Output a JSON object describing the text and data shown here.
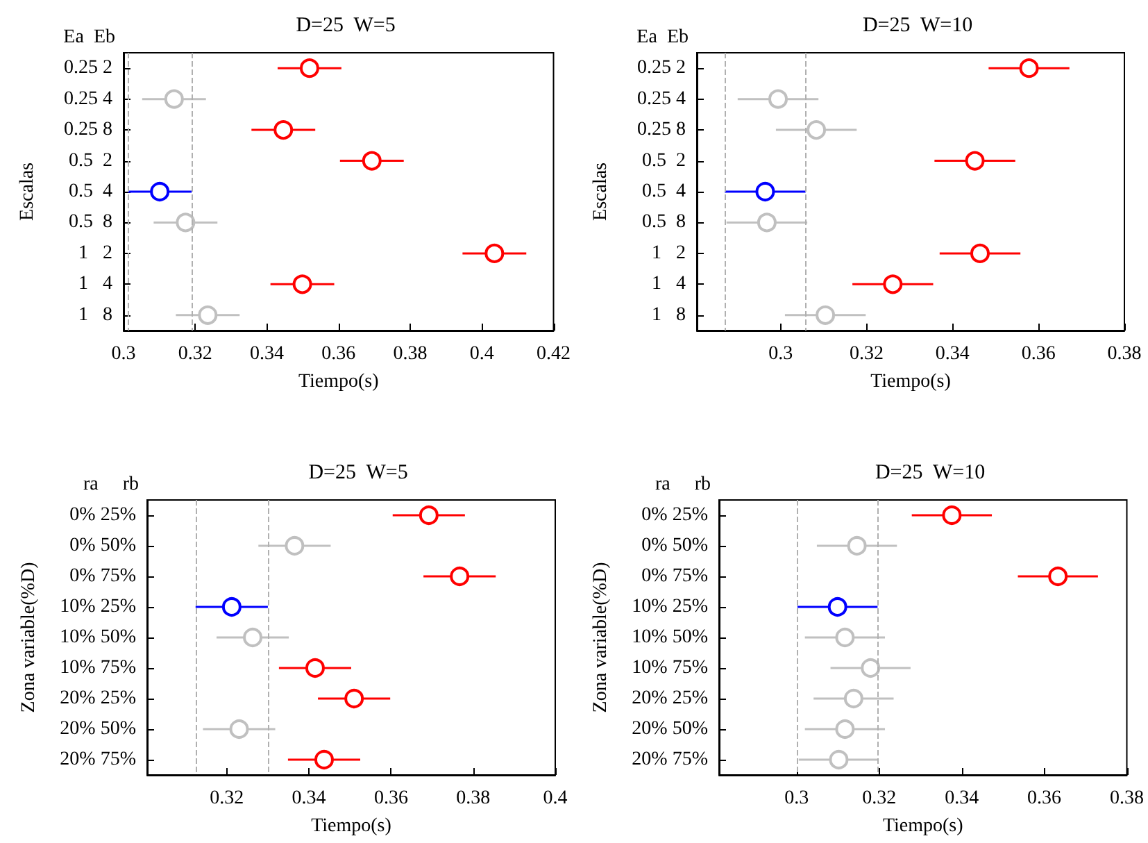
{
  "chart_data": [
    {
      "type": "scatter",
      "orientation": "horizontal",
      "title": "D=25  W=5",
      "xlabel": "Tiempo(s)",
      "ylabel": "Escalas",
      "annotations": [
        "Ea  Eb"
      ],
      "categories": [
        "0.25 2",
        "0.25 4",
        "0.25 8",
        "0.5  2",
        "0.5  4",
        "0.5  8",
        "1   2",
        "1   4",
        "1   8"
      ],
      "values": [
        0.3519,
        0.3141,
        0.3446,
        0.3693,
        0.3101,
        0.3173,
        0.4035,
        0.3499,
        0.3235
      ],
      "colors": [
        "#ff0000",
        "#c0c0c0",
        "#ff0000",
        "#ff0000",
        "#0000ff",
        "#c0c0c0",
        "#ff0000",
        "#ff0000",
        "#c0c0c0"
      ],
      "errors": [
        0.0089,
        0.0089,
        0.0089,
        0.0089,
        0.0089,
        0.0089,
        0.0089,
        0.0089,
        0.0089
      ],
      "xlim": [
        0.3,
        0.42
      ],
      "xticks": [
        0.3,
        0.32,
        0.34,
        0.36,
        0.38,
        0.4,
        0.42
      ],
      "marker": "circle",
      "ref_lines": [
        {
          "axis": "x",
          "value": 0.3012,
          "color": "#b0b0b0",
          "line_style": "dashed"
        },
        {
          "axis": "x",
          "value": 0.319,
          "color": "#b0b0b0",
          "line_style": "dashed"
        }
      ]
    },
    {
      "type": "scatter",
      "orientation": "horizontal",
      "title": "D=25  W=10",
      "xlabel": "Tiempo(s)",
      "ylabel": "Escalas",
      "annotations": [
        "Ea  Eb"
      ],
      "categories": [
        "0.25 2",
        "0.25 4",
        "0.25 8",
        "0.5  2",
        "0.5  4",
        "0.5  8",
        "1   2",
        "1   4",
        "1   8"
      ],
      "values": [
        0.3578,
        0.2994,
        0.3083,
        0.3452,
        0.2964,
        0.2968,
        0.3464,
        0.3261,
        0.3104
      ],
      "colors": [
        "#ff0000",
        "#c0c0c0",
        "#c0c0c0",
        "#ff0000",
        "#0000ff",
        "#c0c0c0",
        "#ff0000",
        "#ff0000",
        "#c0c0c0"
      ],
      "errors": [
        0.0094,
        0.0094,
        0.0094,
        0.0094,
        0.0094,
        0.0094,
        0.0094,
        0.0094,
        0.0094
      ],
      "xlim": [
        0.2805,
        0.38
      ],
      "xticks": [
        0.3,
        0.32,
        0.34,
        0.36,
        0.38
      ],
      "marker": "circle",
      "ref_lines": [
        {
          "axis": "x",
          "value": 0.287,
          "color": "#b0b0b0",
          "line_style": "dashed"
        },
        {
          "axis": "x",
          "value": 0.3058,
          "color": "#b0b0b0",
          "line_style": "dashed"
        }
      ]
    },
    {
      "type": "scatter",
      "orientation": "horizontal",
      "title": "D=25  W=5",
      "xlabel": "Tiempo(s)",
      "ylabel": "Zona variable(%D)",
      "annotations": [
        "ra     rb"
      ],
      "categories": [
        "0% 25%",
        "0% 50%",
        "0% 75%",
        "10% 25%",
        "10% 50%",
        "10% 75%",
        "20% 25%",
        "20% 50%",
        "20% 75%"
      ],
      "values": [
        0.3692,
        0.3365,
        0.3767,
        0.3212,
        0.3263,
        0.3415,
        0.351,
        0.323,
        0.3437
      ],
      "colors": [
        "#ff0000",
        "#c0c0c0",
        "#ff0000",
        "#0000ff",
        "#c0c0c0",
        "#ff0000",
        "#ff0000",
        "#c0c0c0",
        "#ff0000"
      ],
      "errors": [
        0.0088,
        0.0088,
        0.0088,
        0.0088,
        0.0088,
        0.0088,
        0.0088,
        0.0088,
        0.0088
      ],
      "xlim": [
        0.3006,
        0.4
      ],
      "xticks": [
        0.32,
        0.34,
        0.36,
        0.38,
        0.4
      ],
      "marker": "circle",
      "ref_lines": [
        {
          "axis": "x",
          "value": 0.3124,
          "color": "#b0b0b0",
          "line_style": "dashed"
        },
        {
          "axis": "x",
          "value": 0.33,
          "color": "#b0b0b0",
          "line_style": "dashed"
        }
      ]
    },
    {
      "type": "scatter",
      "orientation": "horizontal",
      "title": "D=25  W=10",
      "xlabel": "Tiempo(s)",
      "ylabel": "Zona variable(%D)",
      "annotations": [
        "ra     rb"
      ],
      "categories": [
        "0% 25%",
        "0% 50%",
        "0% 75%",
        "10% 25%",
        "10% 50%",
        "10% 75%",
        "20% 25%",
        "20% 50%",
        "20% 75%"
      ],
      "values": [
        0.3376,
        0.3146,
        0.3633,
        0.3099,
        0.3117,
        0.3179,
        0.3138,
        0.3117,
        0.3102
      ],
      "colors": [
        "#ff0000",
        "#c0c0c0",
        "#ff0000",
        "#0000ff",
        "#c0c0c0",
        "#c0c0c0",
        "#c0c0c0",
        "#c0c0c0",
        "#c0c0c0"
      ],
      "errors": [
        0.0097,
        0.0097,
        0.0097,
        0.0097,
        0.0097,
        0.0097,
        0.0097,
        0.0097,
        0.0097
      ],
      "xlim": [
        0.2812,
        0.38
      ],
      "xticks": [
        0.3,
        0.32,
        0.34,
        0.36,
        0.38
      ],
      "marker": "circle",
      "ref_lines": [
        {
          "axis": "x",
          "value": 0.3002,
          "color": "#b0b0b0",
          "line_style": "dashed"
        },
        {
          "axis": "x",
          "value": 0.3196,
          "color": "#b0b0b0",
          "line_style": "dashed"
        }
      ]
    }
  ]
}
